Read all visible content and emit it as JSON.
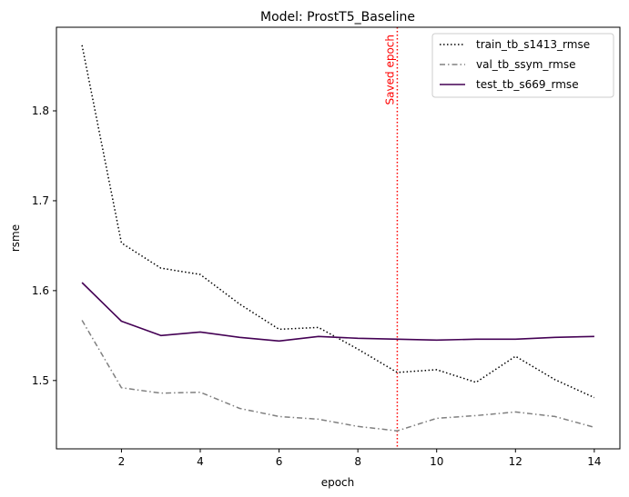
{
  "chart_data": {
    "type": "line",
    "title": "Model: ProstT5_Baseline",
    "xlabel": "epoch",
    "ylabel": "rsme",
    "xlim": [
      0.35,
      14.65
    ],
    "ylim": [
      1.424,
      1.893
    ],
    "xticks": [
      2,
      4,
      6,
      8,
      10,
      12,
      14
    ],
    "yticks": [
      1.5,
      1.6,
      1.7,
      1.8
    ],
    "grid": false,
    "legend_position": "top-right",
    "x": [
      1,
      2,
      3,
      4,
      5,
      6,
      7,
      8,
      9,
      10,
      11,
      12,
      13,
      14
    ],
    "series": [
      {
        "name": "train_tb_s1413_rmse",
        "color": "#000000",
        "style": "dotted",
        "values": [
          1.873,
          1.653,
          1.625,
          1.618,
          1.585,
          1.557,
          1.559,
          1.535,
          1.509,
          1.512,
          1.498,
          1.527,
          1.501,
          1.481
        ]
      },
      {
        "name": "val_tb_ssym_rmse",
        "color": "#808080",
        "style": "dashdot",
        "values": [
          1.567,
          1.492,
          1.486,
          1.487,
          1.469,
          1.46,
          1.457,
          1.449,
          1.444,
          1.458,
          1.461,
          1.465,
          1.46,
          1.448
        ]
      },
      {
        "name": "test_tb_s669_rmse",
        "color": "#440154",
        "style": "solid",
        "values": [
          1.609,
          1.566,
          1.55,
          1.554,
          1.548,
          1.544,
          1.549,
          1.547,
          1.546,
          1.545,
          1.546,
          1.546,
          1.548,
          1.549
        ]
      }
    ],
    "annotations": [
      {
        "type": "vline",
        "x": 9,
        "label": "Saved epoch",
        "color": "#ff0000",
        "style": "dotted"
      }
    ]
  }
}
